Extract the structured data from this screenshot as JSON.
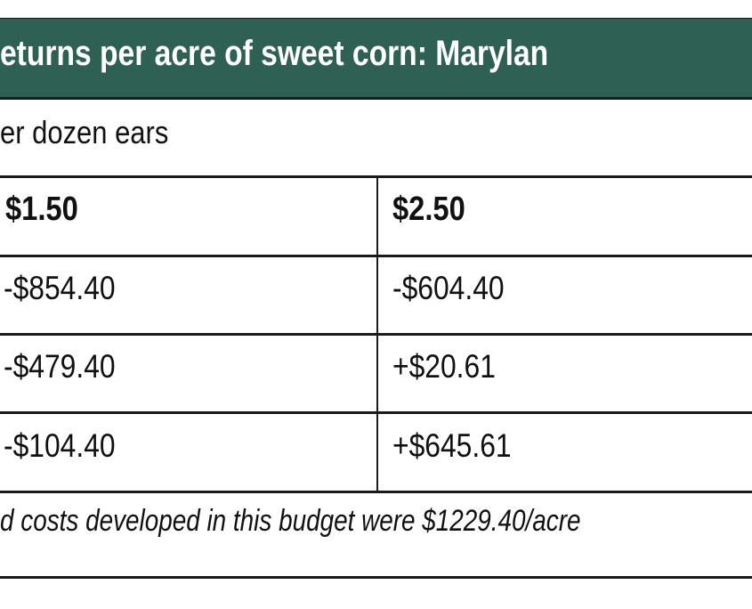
{
  "table": {
    "title": "eturns per acre of sweet corn:  Marylan",
    "subtitle": "er dozen ears",
    "columns": [
      "$1.50",
      "$2.50"
    ],
    "rows": [
      [
        "-$854.40",
        "-$604.40"
      ],
      [
        "-$479.40",
        "+$20.61"
      ],
      [
        "-$104.40",
        "+$645.61"
      ]
    ],
    "footnote": "d costs developed in this budget were $1229.40/acre"
  },
  "colors": {
    "header_bg": "#2e6153",
    "header_text": "#ffffff"
  }
}
